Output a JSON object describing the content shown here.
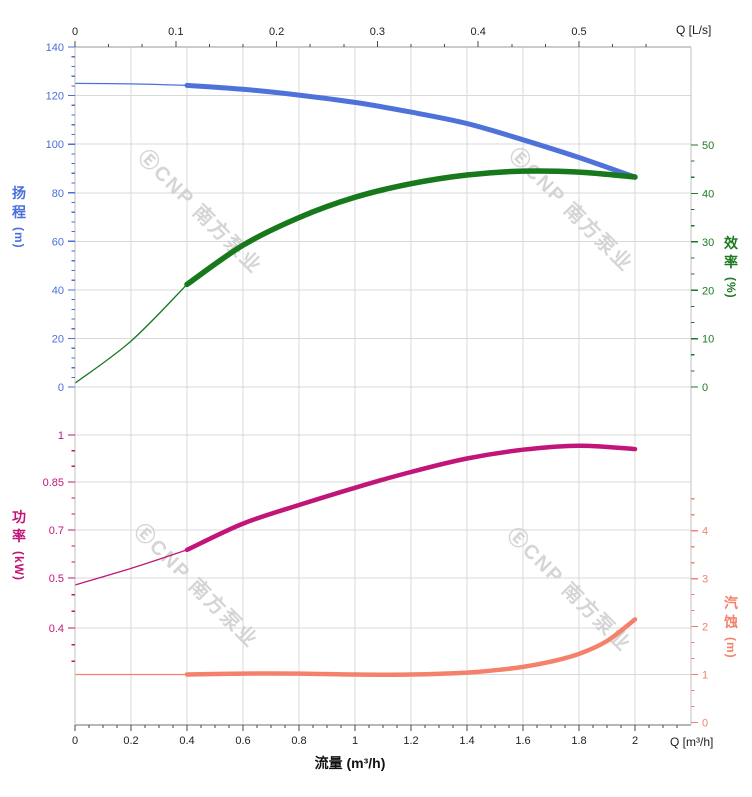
{
  "watermark": {
    "logo_glyph": "Ⓔ",
    "text": "CNP 南方泵业",
    "color": "#cbcbcb"
  },
  "axes": {
    "x_top": {
      "title": "Q [L/s]",
      "ticks": [
        "0",
        "0.1",
        "0.2",
        "0.3",
        "0.4",
        "0.5"
      ],
      "unit_to_m3h": 3.6,
      "minor_divisions": 3
    },
    "x_bottom": {
      "title": "Q [m³/h]",
      "axis_label": "流量 (m³/h)",
      "ticks": [
        "0",
        "0.2",
        "0.4",
        "0.6",
        "0.8",
        "1",
        "1.2",
        "1.4",
        "1.6",
        "1.8",
        "2"
      ],
      "minor_divisions": 4
    },
    "head": {
      "label_chars": [
        "扬",
        "程"
      ],
      "unit": "(m)",
      "color": "#4a6fdb",
      "ticks": [
        "140",
        "120",
        "100",
        "80",
        "60",
        "40",
        "20",
        "0"
      ],
      "minor_divisions": 5
    },
    "eff": {
      "label_chars": [
        "效",
        "率"
      ],
      "unit": "(%)",
      "color": "#1e7a22",
      "ticks": [
        "50",
        "40",
        "30",
        "20",
        "10",
        "0"
      ],
      "minor_divisions": 3
    },
    "power": {
      "label_chars": [
        "功",
        "率"
      ],
      "unit": "(kW)",
      "color": "#c11679",
      "ticks": [
        "1",
        "0.85",
        "0.7",
        "0.5",
        "0.4"
      ],
      "minor_divisions": 3
    },
    "npsh": {
      "label_chars": [
        "汽",
        "蚀"
      ],
      "unit": "(m)",
      "color": "#f4816b",
      "ticks": [
        "4",
        "3",
        "2",
        "1",
        "0"
      ],
      "minor_divisions": 3
    }
  },
  "chart_data": {
    "type": "line",
    "x_unit": "m³/h",
    "x_range": [
      0,
      2.2
    ],
    "thick_range": [
      0.4,
      2.0
    ],
    "grid": true,
    "series": [
      {
        "name": "扬程",
        "axis": "head",
        "color": "#4e72d9",
        "x": [
          0,
          0.2,
          0.4,
          0.6,
          0.8,
          1.0,
          1.2,
          1.4,
          1.6,
          1.8,
          2.0
        ],
        "values": [
          125,
          124.8,
          124.2,
          122.6,
          120.2,
          117.2,
          113.2,
          108.5,
          101.8,
          94.5,
          86.4
        ]
      },
      {
        "name": "效率",
        "axis": "eff",
        "color": "#17781c",
        "x": [
          0,
          0.2,
          0.4,
          0.6,
          0.8,
          1.0,
          1.2,
          1.4,
          1.6,
          1.8,
          2.0
        ],
        "values": [
          0.8,
          9.5,
          21.2,
          29.3,
          35.0,
          39.2,
          42.0,
          43.8,
          44.6,
          44.4,
          43.4
        ]
      },
      {
        "name": "功率",
        "axis": "power",
        "color": "#c11679",
        "x": [
          0,
          0.2,
          0.4,
          0.6,
          0.8,
          1.0,
          1.2,
          1.4,
          1.6,
          1.8,
          2.0
        ],
        "values": [
          0.486,
          0.54,
          0.617,
          0.72,
          0.778,
          0.832,
          0.882,
          0.925,
          0.953,
          0.966,
          0.955
        ]
      },
      {
        "name": "汽蚀",
        "axis": "npsh",
        "color": "#f4816b",
        "x": [
          0,
          0.2,
          0.4,
          0.6,
          0.8,
          1.0,
          1.2,
          1.4,
          1.5,
          1.6,
          1.7,
          1.8,
          1.9,
          2.0
        ],
        "values": [
          1.0,
          1.0,
          1.0,
          1.02,
          1.02,
          1.0,
          1.0,
          1.04,
          1.09,
          1.16,
          1.27,
          1.43,
          1.7,
          2.15
        ]
      }
    ],
    "axes_ranges": {
      "head": [
        0,
        140
      ],
      "eff": [
        0,
        50
      ],
      "npsh": [
        0,
        4
      ],
      "power_tick_values": [
        0.4,
        0.5,
        0.7,
        0.85,
        1
      ]
    }
  }
}
